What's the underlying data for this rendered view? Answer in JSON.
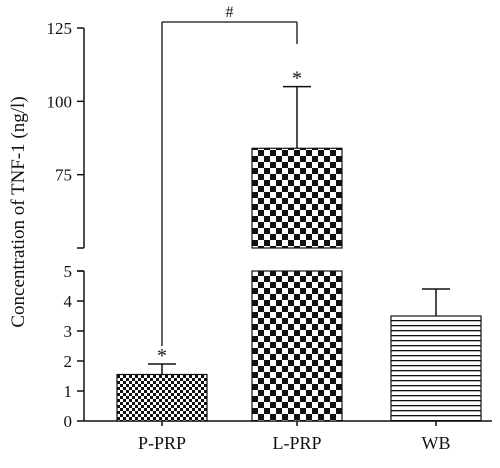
{
  "chart_data": {
    "type": "bar",
    "title": "",
    "xlabel": "",
    "ylabel": "Concentration of TNF-1 (ng/l)",
    "categories": [
      "P-PRP",
      "L-PRP",
      "WB"
    ],
    "values": [
      1.55,
      84,
      3.5
    ],
    "error": [
      0.35,
      21,
      0.9
    ],
    "patterns": [
      "fine-checker",
      "coarse-checker",
      "horizontal-lines"
    ],
    "y_axis_broken": true,
    "ylim_lower": [
      0,
      5
    ],
    "ylim_upper": [
      50,
      125
    ],
    "yticks_lower": [
      "0",
      "1",
      "2",
      "3",
      "4",
      "5"
    ],
    "yticks_upper": [
      "75",
      "100",
      "125"
    ],
    "yticks_lower_values": [
      0,
      1,
      2,
      3,
      4,
      5
    ],
    "yticks_upper_values": [
      75,
      100,
      125
    ],
    "bar_annotations": [
      "*",
      "*",
      ""
    ],
    "comparison": {
      "from": "P-PRP",
      "to": "L-PRP",
      "label": "#"
    },
    "grid": false,
    "legend": "none"
  }
}
